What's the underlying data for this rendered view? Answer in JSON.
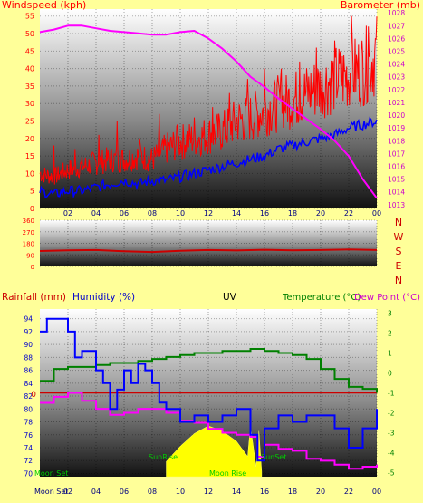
{
  "top_panel": {
    "left_label": "Windspeed (kph)",
    "center_label": "",
    "right_label": "Barometer (mb)"
  },
  "direction_letters": [
    "N",
    "W",
    "S",
    "E",
    "N"
  ],
  "bottom_panel": {
    "rainfall_label": "Rainfall (mm)",
    "humidity_label": "Humidity (%)",
    "uv_label": "UV",
    "temperature_label": "Temperature (°C)",
    "dewpoint_label": "Dew Point (°C)",
    "zero_label": "0",
    "annotations": {
      "moon_set_top": "Moon Set",
      "sunrise": "SunRise",
      "moon_rise": "Moon Rise",
      "sunset": "SunSet",
      "moon_set_bottom": "Moon Set"
    }
  },
  "colors": {
    "background": "#ffff99",
    "wind": "#ff0000",
    "wind_avg": "#0000ff",
    "barometer": "#ff00ff",
    "direction": "#cc0000",
    "humidity": "#0000ff",
    "temperature": "#008000",
    "dewpoint": "#ff00ff",
    "uv": "#ffff00",
    "rain": "#cc0000",
    "left_axis_text": "#ff0000",
    "right_axis_text": "#cc00cc"
  },
  "chart_data": [
    {
      "type": "line",
      "x_ticks": [
        "02",
        "04",
        "06",
        "08",
        "10",
        "12",
        "14",
        "16",
        "18",
        "20",
        "22",
        "00"
      ],
      "x_range_hours": [
        0,
        24
      ],
      "y_left": {
        "label": "Windspeed (kph)",
        "ticks": [
          0,
          5,
          10,
          15,
          20,
          25,
          30,
          35,
          40,
          45,
          50,
          55
        ],
        "range": [
          0,
          57
        ]
      },
      "y_right": {
        "label": "Barometer (mb)",
        "ticks": [
          1013,
          1014,
          1015,
          1016,
          1017,
          1018,
          1019,
          1020,
          1021,
          1022,
          1023,
          1024,
          1025,
          1026,
          1027,
          1028
        ],
        "range": [
          1012.7,
          1028.3
        ]
      },
      "series": [
        {
          "name": "Windspeed (kph)",
          "axis": "left",
          "x": [
            0,
            1,
            2,
            3,
            4,
            5,
            6,
            7,
            8,
            9,
            10,
            11,
            12,
            13,
            14,
            15,
            16,
            17,
            18,
            19,
            20,
            21,
            22,
            23,
            24
          ],
          "y": [
            10,
            9,
            11,
            12,
            13,
            14,
            14,
            15,
            14,
            17,
            19,
            20,
            21,
            22,
            25,
            26,
            28,
            30,
            31,
            33,
            35,
            37,
            38,
            40,
            44
          ]
        },
        {
          "name": "Wind gust peaks",
          "axis": "left",
          "x": [
            1,
            2.5,
            4.2,
            5.5,
            7.1,
            8.5,
            9.8,
            11,
            12.3,
            13.5,
            14.8,
            16,
            17.2,
            18.5,
            19.7,
            21,
            22.2,
            23.4
          ],
          "y": [
            18,
            17,
            21,
            25,
            20,
            27,
            24,
            26,
            29,
            33,
            37,
            40,
            40,
            42,
            46,
            48,
            55,
            52
          ]
        },
        {
          "name": "Average windspeed",
          "axis": "left",
          "x": [
            0,
            1,
            2,
            3,
            4,
            5,
            6,
            7,
            8,
            9,
            10,
            11,
            12,
            13,
            14,
            15,
            16,
            17,
            18,
            19,
            20,
            21,
            22,
            23,
            24
          ],
          "y": [
            5,
            4,
            5,
            5,
            6,
            7,
            8,
            7,
            8,
            8,
            9,
            10,
            11,
            12,
            13,
            14,
            15,
            17,
            18,
            19,
            20,
            21,
            23,
            24,
            25
          ]
        },
        {
          "name": "Barometer (mb)",
          "axis": "right",
          "x": [
            0,
            1,
            2,
            3,
            4,
            5,
            6,
            7,
            8,
            9,
            10,
            11,
            12,
            13,
            14,
            15,
            16,
            17,
            18,
            19,
            20,
            21,
            22,
            23,
            24
          ],
          "y": [
            1026.5,
            1026.7,
            1027.0,
            1027.0,
            1026.8,
            1026.6,
            1026.5,
            1026.4,
            1026.3,
            1026.3,
            1026.5,
            1026.6,
            1026.0,
            1025.2,
            1024.2,
            1023.0,
            1022.2,
            1021.3,
            1020.5,
            1019.7,
            1018.9,
            1018.0,
            1016.8,
            1015.0,
            1013.5
          ]
        }
      ]
    },
    {
      "type": "line",
      "x_range_hours": [
        0,
        24
      ],
      "y_left": {
        "ticks": [
          0,
          90,
          180,
          270,
          360
        ],
        "range": [
          0,
          360
        ]
      },
      "series": [
        {
          "name": "Wind direction (°)",
          "x": [
            0,
            2,
            4,
            6,
            8,
            10,
            12,
            14,
            16,
            18,
            20,
            22,
            24
          ],
          "y": [
            120,
            125,
            128,
            118,
            112,
            122,
            128,
            124,
            130,
            125,
            128,
            132,
            128
          ]
        }
      ]
    },
    {
      "type": "line",
      "x_ticks": [
        "02",
        "04",
        "06",
        "08",
        "10",
        "12",
        "14",
        "16",
        "18",
        "20",
        "22",
        "00"
      ],
      "x_range_hours": [
        0,
        24
      ],
      "y_left": {
        "label": "Humidity (%)",
        "ticks": [
          70,
          72,
          74,
          76,
          78,
          80,
          82,
          84,
          86,
          88,
          90,
          92,
          94
        ],
        "range": [
          69.5,
          95.5
        ]
      },
      "y_right": {
        "label": "Temperature (°C)",
        "ticks": [
          -5,
          -4,
          -3,
          -2,
          -1,
          0,
          1,
          2,
          3
        ],
        "range": [
          -5.2,
          3.2
        ]
      },
      "series": [
        {
          "name": "Humidity (%)",
          "axis": "left",
          "x": [
            0,
            0.5,
            1,
            2,
            2.5,
            3,
            4,
            4.5,
            5,
            5.5,
            6,
            6.5,
            7,
            7.5,
            8,
            8.5,
            9,
            10,
            11,
            12,
            13,
            14,
            15,
            15.5,
            16,
            17,
            18,
            19,
            20,
            21,
            22,
            23,
            24
          ],
          "y": [
            92,
            94,
            94,
            92,
            88,
            89,
            86,
            84,
            80,
            83,
            86,
            84,
            87,
            86,
            84,
            81,
            80,
            78,
            79,
            78,
            79,
            80,
            76,
            72,
            77,
            79,
            78,
            79,
            79,
            77,
            74,
            77,
            80
          ]
        },
        {
          "name": "Temperature (°C)",
          "axis": "right",
          "x": [
            0,
            1,
            2,
            3,
            4,
            5,
            6,
            7,
            8,
            9,
            10,
            11,
            12,
            13,
            14,
            15,
            16,
            17,
            18,
            19,
            20,
            21,
            22,
            23,
            24
          ],
          "y": [
            -0.4,
            0.2,
            0.3,
            0.3,
            0.4,
            0.5,
            0.5,
            0.6,
            0.7,
            0.8,
            0.9,
            1.0,
            1.0,
            1.1,
            1.1,
            1.2,
            1.1,
            1.0,
            0.9,
            0.7,
            0.2,
            -0.3,
            -0.7,
            -0.8,
            -1.0
          ]
        },
        {
          "name": "Dew Point (°C)",
          "axis": "right",
          "x": [
            0,
            1,
            2,
            3,
            4,
            5,
            6,
            7,
            8,
            9,
            10,
            11,
            12,
            13,
            14,
            15,
            15.5,
            16,
            17,
            18,
            19,
            20,
            21,
            22,
            23,
            24
          ],
          "y": [
            -1.5,
            -1.2,
            -1.0,
            -1.4,
            -1.8,
            -2.1,
            -2.0,
            -1.8,
            -1.8,
            -2.0,
            -2.4,
            -2.5,
            -2.8,
            -3.0,
            -3.1,
            -3.2,
            -4.2,
            -3.6,
            -3.8,
            -3.9,
            -4.3,
            -4.4,
            -4.6,
            -4.8,
            -4.7,
            -4.6
          ]
        },
        {
          "name": "UV",
          "axis": "uv",
          "x": [
            9,
            10,
            11,
            12,
            13,
            14,
            14.8,
            15.0,
            15.4,
            15.6,
            15.8
          ],
          "y": [
            0.3,
            0.6,
            0.85,
            1.0,
            0.9,
            0.7,
            0.4,
            1.0,
            0.2,
            0.9,
            0.1
          ]
        }
      ]
    }
  ]
}
